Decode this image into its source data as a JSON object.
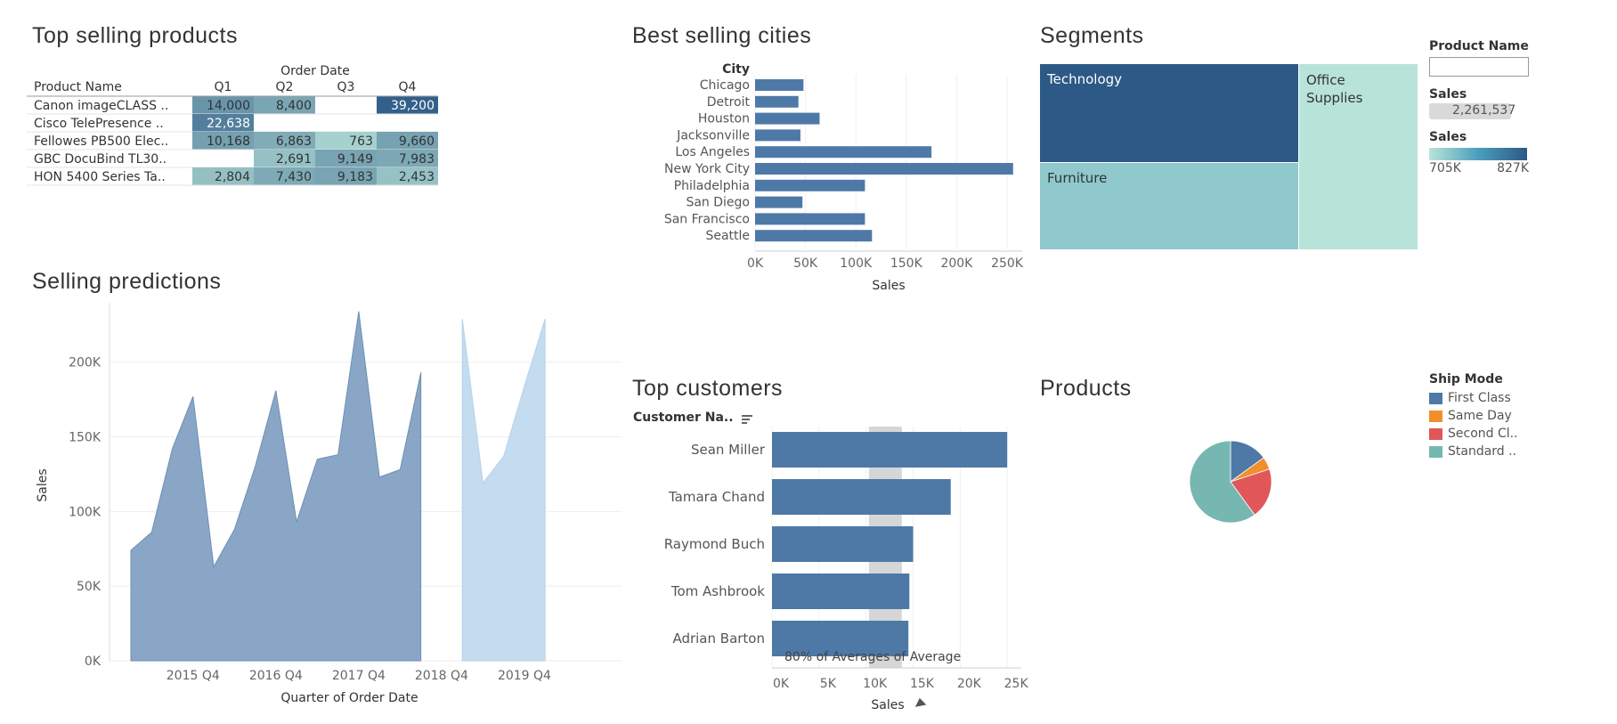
{
  "titles": {
    "top_products": "Top selling products",
    "best_cities": "Best selling cities",
    "segments": "Segments",
    "predictions": "Selling predictions",
    "customers": "Top customers",
    "products": "Products"
  },
  "filters": {
    "product_name_label": "Product Name",
    "product_name_value": "",
    "sales_label": "Sales",
    "sales_value": "2,261,537",
    "sales_color_label": "Sales",
    "sales_color_min": "705K",
    "sales_color_max": "827K"
  },
  "ship_mode_legend": {
    "title": "Ship Mode",
    "items": [
      {
        "label": "First Class",
        "color": "#4e79a7"
      },
      {
        "label": "Same Day",
        "color": "#f28e2b"
      },
      {
        "label": "Second Cl..",
        "color": "#e15759"
      },
      {
        "label": "Standard ..",
        "color": "#76b7b2"
      }
    ]
  },
  "chart_data": [
    {
      "id": "top_products",
      "type": "table",
      "column_group_label": "Order Date",
      "row_header": "Product Name",
      "columns": [
        "Q1",
        "Q2",
        "Q3",
        "Q4"
      ],
      "rows": [
        {
          "name": "Canon imageCLASS ..",
          "values": [
            14000,
            8400,
            null,
            39200
          ],
          "labels": [
            "14,000",
            "8,400",
            "",
            "39,200"
          ]
        },
        {
          "name": "Cisco TelePresence ..",
          "values": [
            22638,
            null,
            null,
            null
          ],
          "labels": [
            "22,638",
            "",
            "",
            ""
          ]
        },
        {
          "name": "Fellowes PB500 Elec..",
          "values": [
            10168,
            6863,
            763,
            9660
          ],
          "labels": [
            "10,168",
            "6,863",
            "763",
            "9,660"
          ]
        },
        {
          "name": "GBC DocuBind TL30..",
          "values": [
            null,
            2691,
            9149,
            7983
          ],
          "labels": [
            "",
            "2,691",
            "9,149",
            "7,983"
          ]
        },
        {
          "name": "HON 5400 Series Ta..",
          "values": [
            2804,
            7430,
            9183,
            2453
          ],
          "labels": [
            "2,804",
            "7,430",
            "9,183",
            "2,453"
          ]
        }
      ]
    },
    {
      "id": "best_cities",
      "type": "bar",
      "orientation": "horizontal",
      "category_header": "City",
      "categories": [
        "Chicago",
        "Detroit",
        "Houston",
        "Jacksonville",
        "Los Angeles",
        "New York City",
        "Philadelphia",
        "San Diego",
        "San Francisco",
        "Seattle"
      ],
      "values": [
        48000,
        43000,
        64000,
        45000,
        175000,
        256000,
        109000,
        47000,
        109000,
        116000
      ],
      "xlabel": "Sales",
      "xlim": [
        0,
        265000
      ],
      "ticks": [
        0,
        50000,
        100000,
        150000,
        200000,
        250000
      ],
      "tick_labels": [
        "0K",
        "50K",
        "100K",
        "150K",
        "200K",
        "250K"
      ],
      "color": "#4e79a7"
    },
    {
      "id": "segments",
      "type": "treemap",
      "items": [
        {
          "label": "Technology",
          "value": 827000,
          "color": "#2c5986"
        },
        {
          "label": "Furniture",
          "value": 742000,
          "color": "#8fc8cd"
        },
        {
          "label": "Office Supplies",
          "value": 705000,
          "color": "#b8e3d9"
        }
      ]
    },
    {
      "id": "predictions",
      "type": "area",
      "xlabel": "Quarter of Order Date",
      "ylabel": "Sales",
      "ylim": [
        0,
        235000
      ],
      "yticks": [
        0,
        50000,
        100000,
        150000,
        200000
      ],
      "ytick_labels": [
        "0K",
        "50K",
        "100K",
        "150K",
        "200K"
      ],
      "xtick_labels": [
        "2015 Q4",
        "2016 Q4",
        "2017 Q4",
        "2018 Q4",
        "2019 Q4"
      ],
      "x": [
        "2014 Q1",
        "2014 Q2",
        "2014 Q3",
        "2014 Q4",
        "2015 Q1",
        "2015 Q2",
        "2015 Q3",
        "2015 Q4",
        "2016 Q1",
        "2016 Q2",
        "2016 Q3",
        "2016 Q4",
        "2017 Q1",
        "2017 Q2",
        "2017 Q3",
        "2017 Q4",
        "2018 Q1",
        "2018 Q2",
        "2018 Q3",
        "2018 Q4",
        "2019 Q1",
        "2019 Q2",
        "2019 Q3",
        "2019 Q4"
      ],
      "series": [
        {
          "values": [
            74000,
            86000,
            142000,
            177000,
            63000,
            88000,
            130000,
            181000,
            93000,
            135000,
            138000,
            234000,
            123000,
            128000,
            193000,
            null,
            null,
            null,
            null,
            null,
            null,
            null,
            null,
            null
          ],
          "color": "#8aa6c6"
        },
        {
          "values": [
            null,
            null,
            null,
            null,
            null,
            null,
            null,
            null,
            null,
            null,
            null,
            null,
            null,
            null,
            null,
            null,
            229000,
            119000,
            137000,
            184000,
            229000,
            null,
            null,
            null
          ],
          "color": "#c4dcf0"
        }
      ]
    },
    {
      "id": "customers",
      "type": "bar",
      "orientation": "horizontal",
      "category_header": "Customer Na..",
      "categories": [
        "Sean Miller",
        "Tamara Chand",
        "Raymond Buch",
        "Tom Ashbrook",
        "Adrian Barton"
      ],
      "values": [
        25000,
        19000,
        15000,
        14600,
        14500
      ],
      "xlabel": "Sales",
      "xlim": [
        0,
        26500
      ],
      "ticks": [
        0,
        5000,
        10000,
        15000,
        20000,
        25000
      ],
      "tick_labels": [
        "0K",
        "5K",
        "10K",
        "15K",
        "20K",
        "25K"
      ],
      "reference_band": {
        "from": 10300,
        "to": 13800,
        "label": "80% of Averages of Average"
      },
      "color": "#4e79a7"
    },
    {
      "id": "products",
      "type": "pie",
      "labels": [
        "First Class",
        "Same Day",
        "Second Cl..",
        "Standard .."
      ],
      "values": [
        15,
        5,
        20,
        60
      ],
      "colors": [
        "#4e79a7",
        "#f28e2b",
        "#e15759",
        "#76b7b2"
      ]
    }
  ]
}
